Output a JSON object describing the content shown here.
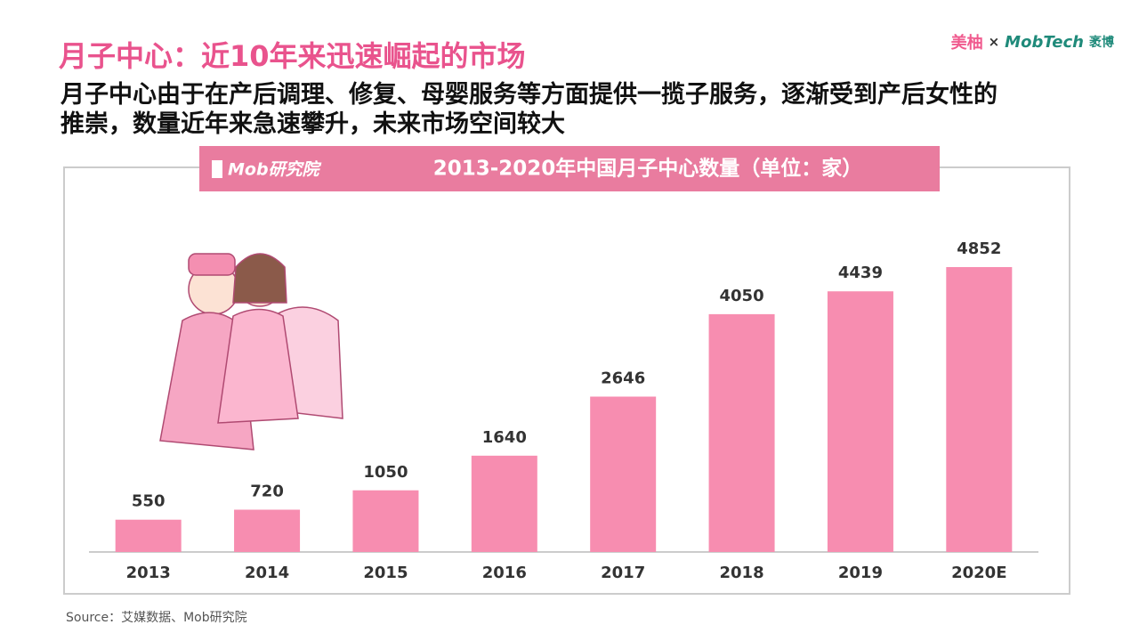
{
  "header": {
    "title": "月子中心：近10年来迅速崛起的市场",
    "subtitle_lines": [
      "月子中心由于在产后调理、修复、母婴服务等方面提供一揽子服务，逐渐受到产后女性的",
      "推崇，数量近年来急速攀升，未来市场空间较大"
    ],
    "logos": [
      "美柚",
      "×",
      "MobTech",
      "袤博"
    ]
  },
  "banner_logo": "Mob研究院",
  "chart_data": {
    "type": "bar",
    "title": "2013-2020年中国月子中心数量（单位：家）",
    "categories": [
      "2013",
      "2014",
      "2015",
      "2016",
      "2017",
      "2018",
      "2019",
      "2020E"
    ],
    "values": [
      550,
      720,
      1050,
      1640,
      2646,
      4050,
      4439,
      4852
    ],
    "color": "#f78db0"
  },
  "footer": {
    "source": "Source：艾媒数据、Mob研究院"
  }
}
